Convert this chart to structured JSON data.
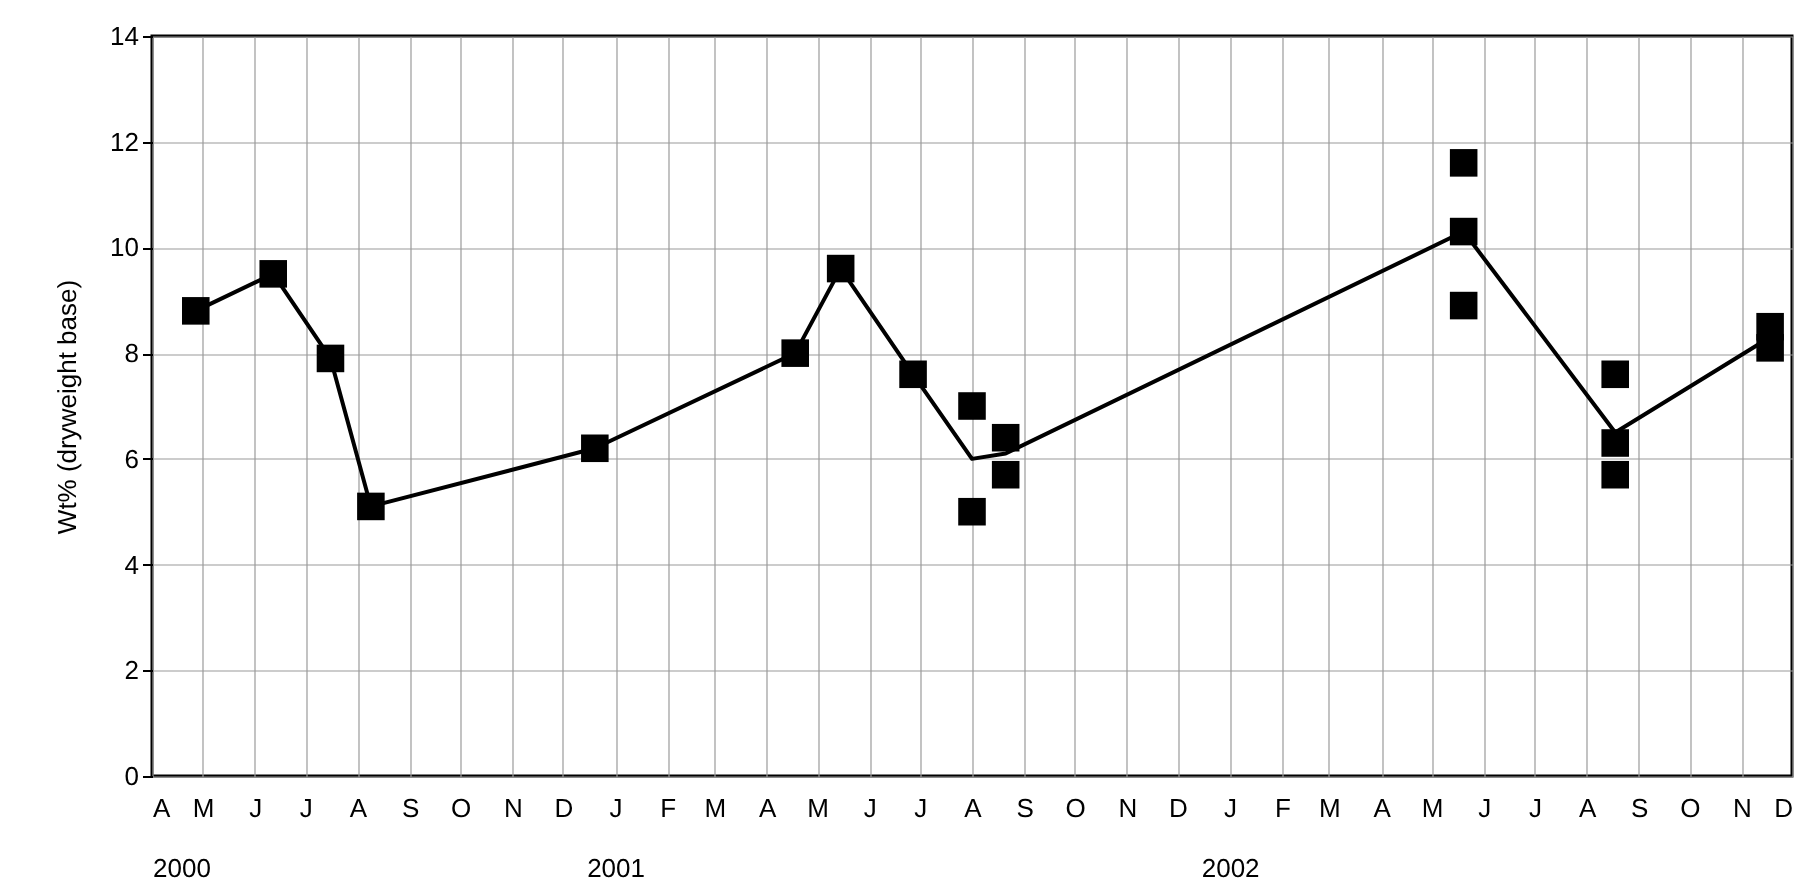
{
  "chart_data": {
    "type": "line",
    "ylabel": "Wt% (dryweight base)",
    "xlim": [
      "2000-04",
      "2002-12"
    ],
    "ylim": [
      0,
      14
    ],
    "yticks": [
      0,
      2,
      4,
      6,
      8,
      10,
      12,
      14
    ],
    "xticks": [
      {
        "value": "2000-04",
        "label": "A\n2000"
      },
      {
        "value": "2000-05",
        "label": "M"
      },
      {
        "value": "2000-06",
        "label": "J"
      },
      {
        "value": "2000-07",
        "label": "J"
      },
      {
        "value": "2000-08",
        "label": "A"
      },
      {
        "value": "2000-09",
        "label": "S"
      },
      {
        "value": "2000-10",
        "label": "O"
      },
      {
        "value": "2000-11",
        "label": "N"
      },
      {
        "value": "2000-12",
        "label": "D"
      },
      {
        "value": "2001-01",
        "label": "J\n2001"
      },
      {
        "value": "2001-02",
        "label": "F"
      },
      {
        "value": "2001-03",
        "label": "M"
      },
      {
        "value": "2001-04",
        "label": "A"
      },
      {
        "value": "2001-05",
        "label": "M"
      },
      {
        "value": "2001-06",
        "label": "J"
      },
      {
        "value": "2001-07",
        "label": "J"
      },
      {
        "value": "2001-08",
        "label": "A"
      },
      {
        "value": "2001-09",
        "label": "S"
      },
      {
        "value": "2001-10",
        "label": "O"
      },
      {
        "value": "2001-11",
        "label": "N"
      },
      {
        "value": "2001-12",
        "label": "D"
      },
      {
        "value": "2002-01",
        "label": "J\n2002"
      },
      {
        "value": "2002-02",
        "label": "F"
      },
      {
        "value": "2002-03",
        "label": "M"
      },
      {
        "value": "2002-04",
        "label": "A"
      },
      {
        "value": "2002-05",
        "label": "M"
      },
      {
        "value": "2002-06",
        "label": "J"
      },
      {
        "value": "2002-07",
        "label": "J"
      },
      {
        "value": "2002-08",
        "label": "A"
      },
      {
        "value": "2002-09",
        "label": "S"
      },
      {
        "value": "2002-10",
        "label": "O"
      },
      {
        "value": "2002-11",
        "label": "N"
      },
      {
        "value": "2002-12",
        "label": "D"
      }
    ],
    "grid": true,
    "line_style": "solid",
    "series": [
      {
        "type": "line",
        "color": "#000000",
        "marker": "none",
        "x": [
          "2000-04-27",
          "2000-06-12",
          "2000-07-16",
          "2000-08-09",
          "2000-12-20",
          "2001-04-18",
          "2001-05-15",
          "2001-06-27",
          "2001-08-01",
          "2001-08-21",
          "2002-05-20",
          "2002-08-18",
          "2002-11-18"
        ],
        "values": [
          8.8,
          9.5,
          7.9,
          5.1,
          6.2,
          8.0,
          9.6,
          7.6,
          6.0,
          6.1,
          10.3,
          6.5,
          8.3
        ]
      },
      {
        "type": "scatter",
        "color": "#000000",
        "marker": "square",
        "x": [
          "2000-04-27",
          "2000-06-12",
          "2000-07-16",
          "2000-08-09",
          "2000-12-20",
          "2001-04-18",
          "2001-05-15",
          "2001-06-27",
          "2001-08-01",
          "2001-08-01",
          "2001-08-21",
          "2001-08-21",
          "2002-05-20",
          "2002-05-20",
          "2002-05-20",
          "2002-08-18",
          "2002-08-18",
          "2002-08-18",
          "2002-11-18",
          "2002-11-18"
        ],
        "values": [
          8.8,
          9.5,
          7.9,
          5.1,
          6.2,
          8.0,
          9.6,
          7.6,
          7.0,
          5.0,
          6.4,
          5.7,
          11.6,
          10.3,
          8.9,
          7.6,
          6.3,
          5.7,
          8.5,
          8.1
        ]
      }
    ]
  }
}
